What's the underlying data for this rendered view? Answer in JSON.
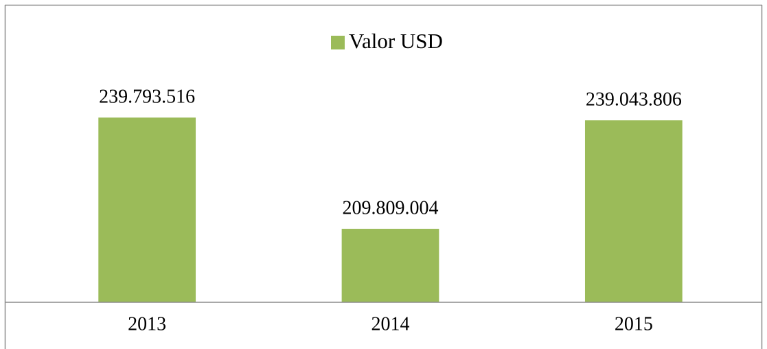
{
  "chart_data": {
    "type": "bar",
    "categories": [
      "2013",
      "2014",
      "2015"
    ],
    "series": [
      {
        "name": "Valor USD",
        "color": "#9bbb59",
        "values": [
          239793516,
          209809004,
          239043806
        ],
        "value_labels": [
          "239.793.516",
          "209.809.004",
          "239.043.806"
        ]
      }
    ],
    "ylim": [
      190000000,
      245000000
    ],
    "legend": "top"
  }
}
